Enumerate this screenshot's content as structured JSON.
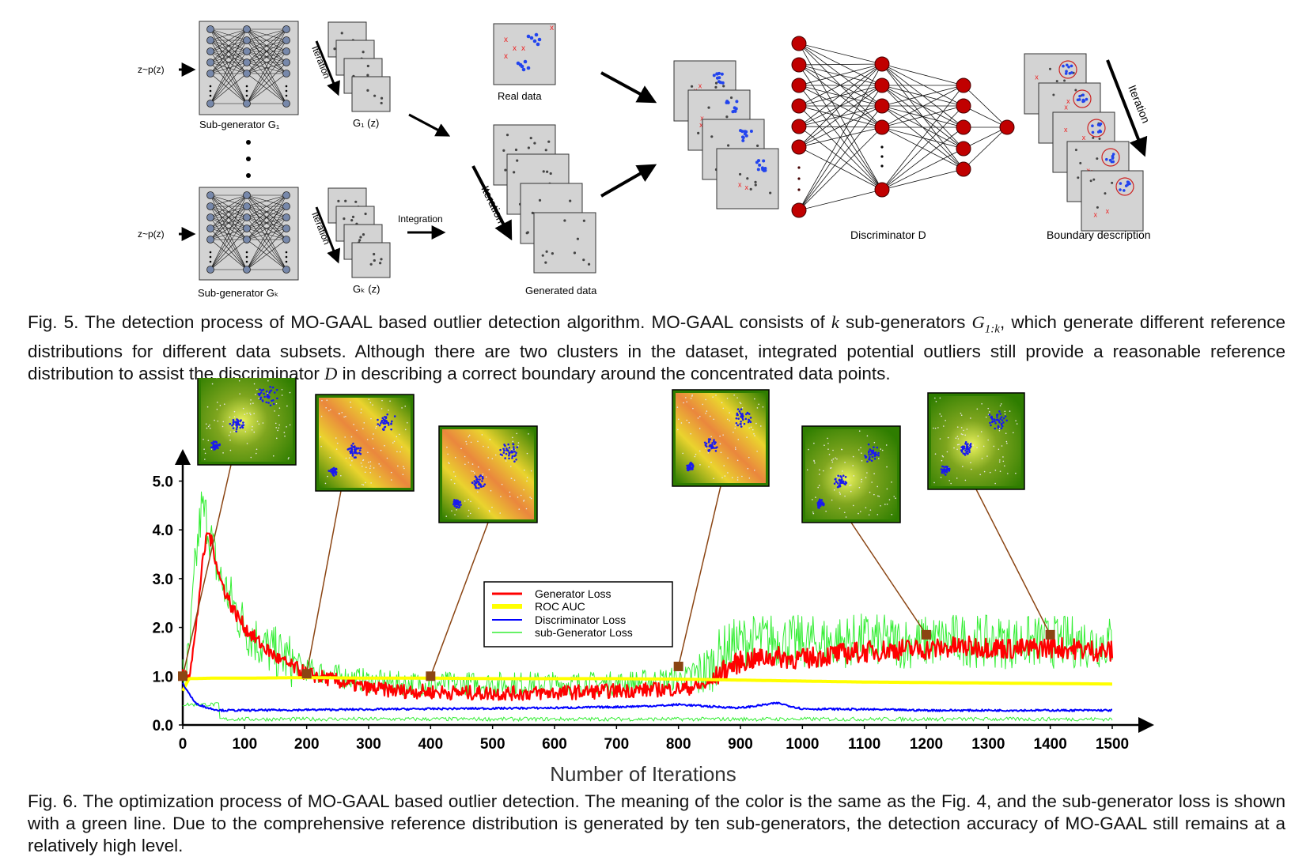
{
  "fig5": {
    "input_label_top": "z~p(z)",
    "input_label_bottom": "z~p(z)",
    "subgen_top_label": "Sub-generator G₁",
    "subgen_bottom_label": "Sub-generator Gₖ",
    "g1_label": "G₁ (z)",
    "gk_label": "Gₖ (z)",
    "iteration_label": "Iteration",
    "integration_label": "Integration",
    "real_data_label": "Real data",
    "generated_data_label": "Generated data",
    "discriminator_label": "Discriminator D",
    "boundary_label": "Boundary description"
  },
  "caption5": {
    "prefix": "Fig. 5. The detection process of MO-GAAL based outlier detection algorithm. MO-GAAL consists of ",
    "k": "k",
    "mid1": " sub-generators ",
    "G": "G",
    "G_sub": "1:k",
    "mid2": ", which generate different reference distributions for different data subsets. Although there are two clusters in the dataset, integrated potential outliers still provide a reasonable reference distribution to assist the discriminator ",
    "D": "D",
    "suffix": " in describing a correct boundary around the concentrated data points."
  },
  "caption6": {
    "text": "Fig. 6. The optimization process of MO-GAAL based outlier detection. The meaning of the color is the same as the Fig. 4, and the sub-generator loss is shown with a green line. Due to the comprehensive reference distribution is generated by ten sub-generators, the detection accuracy of MO-GAAL still remains at a relatively high level."
  },
  "colors": {
    "generator": "#ff0000",
    "roc": "#ffff00",
    "discriminator": "#0000ff",
    "subgen": "#33ee33",
    "marker": "#8b4513",
    "node": "#c00000"
  },
  "chart_data": {
    "type": "line",
    "xlabel": "Number of Iterations",
    "ylabel": "",
    "xlim": [
      0,
      1500
    ],
    "ylim": [
      0,
      5.3
    ],
    "xticks": [
      0,
      100,
      200,
      300,
      400,
      500,
      600,
      700,
      800,
      900,
      1000,
      1100,
      1200,
      1300,
      1400,
      1500
    ],
    "yticks": [
      0.0,
      1.0,
      2.0,
      3.0,
      4.0,
      5.0
    ],
    "ytick_labels": [
      "0.0",
      "1.0",
      "2.0",
      "3.0",
      "4.0",
      "5.0"
    ],
    "legend": {
      "placement": "center"
    },
    "series": [
      {
        "name": "Generator Loss",
        "color": "#ff0000",
        "x": [
          0,
          10,
          20,
          30,
          40,
          50,
          60,
          80,
          100,
          130,
          160,
          200,
          250,
          300,
          350,
          400,
          450,
          500,
          550,
          600,
          650,
          700,
          750,
          800,
          830,
          850,
          870,
          900,
          950,
          1000,
          1050,
          1100,
          1150,
          1200,
          1250,
          1300,
          1350,
          1400,
          1450,
          1500
        ],
        "y": [
          1.0,
          1.05,
          1.8,
          3.1,
          4.0,
          3.6,
          3.0,
          2.4,
          2.0,
          1.6,
          1.3,
          1.05,
          0.9,
          0.75,
          0.7,
          0.68,
          0.66,
          0.65,
          0.65,
          0.66,
          0.68,
          0.7,
          0.72,
          0.74,
          0.78,
          0.85,
          1.1,
          1.3,
          1.4,
          1.35,
          1.45,
          1.5,
          1.55,
          1.55,
          1.6,
          1.6,
          1.55,
          1.6,
          1.55,
          1.5
        ]
      },
      {
        "name": "ROC AUC",
        "color": "#ffff00",
        "x": [
          0,
          10,
          50,
          100,
          200,
          300,
          400,
          500,
          600,
          700,
          800,
          900,
          1000,
          1100,
          1200,
          1300,
          1400,
          1500
        ],
        "y": [
          0.7,
          0.95,
          0.96,
          0.96,
          0.97,
          0.96,
          0.96,
          0.95,
          0.95,
          0.95,
          0.94,
          0.92,
          0.9,
          0.88,
          0.87,
          0.86,
          0.85,
          0.84
        ]
      },
      {
        "name": "Discriminator Loss",
        "color": "#0000ff",
        "x": [
          0,
          10,
          20,
          40,
          60,
          100,
          200,
          300,
          400,
          500,
          600,
          700,
          780,
          800,
          850,
          900,
          960,
          1000,
          1100,
          1200,
          1300,
          1400,
          1500
        ],
        "y": [
          0.85,
          0.65,
          0.45,
          0.35,
          0.3,
          0.3,
          0.31,
          0.32,
          0.33,
          0.34,
          0.35,
          0.37,
          0.4,
          0.42,
          0.38,
          0.35,
          0.45,
          0.33,
          0.32,
          0.3,
          0.3,
          0.3,
          0.3
        ]
      },
      {
        "name": "sub-Generator Loss",
        "color": "#33ee33",
        "x": [
          0,
          10,
          20,
          30,
          40,
          50,
          60,
          80,
          100,
          130,
          160,
          200,
          250,
          300,
          350,
          400,
          450,
          500,
          550,
          600,
          650,
          700,
          750,
          800,
          830,
          850,
          870,
          900,
          950,
          1000,
          1050,
          1100,
          1150,
          1200,
          1250,
          1300,
          1350,
          1400,
          1450,
          1500
        ],
        "y": [
          1.0,
          1.3,
          3.2,
          4.4,
          4.2,
          3.5,
          3.0,
          2.5,
          2.0,
          1.6,
          1.4,
          1.15,
          1.0,
          0.9,
          0.85,
          0.85,
          0.85,
          0.85,
          0.85,
          0.85,
          0.85,
          0.85,
          0.9,
          0.95,
          1.0,
          1.15,
          1.5,
          1.7,
          1.75,
          1.7,
          1.7,
          1.75,
          1.7,
          1.7,
          1.75,
          1.7,
          1.7,
          1.7,
          1.7,
          1.7
        ]
      }
    ],
    "snapshot_iterations": [
      0,
      200,
      400,
      800,
      1200,
      1400
    ]
  }
}
